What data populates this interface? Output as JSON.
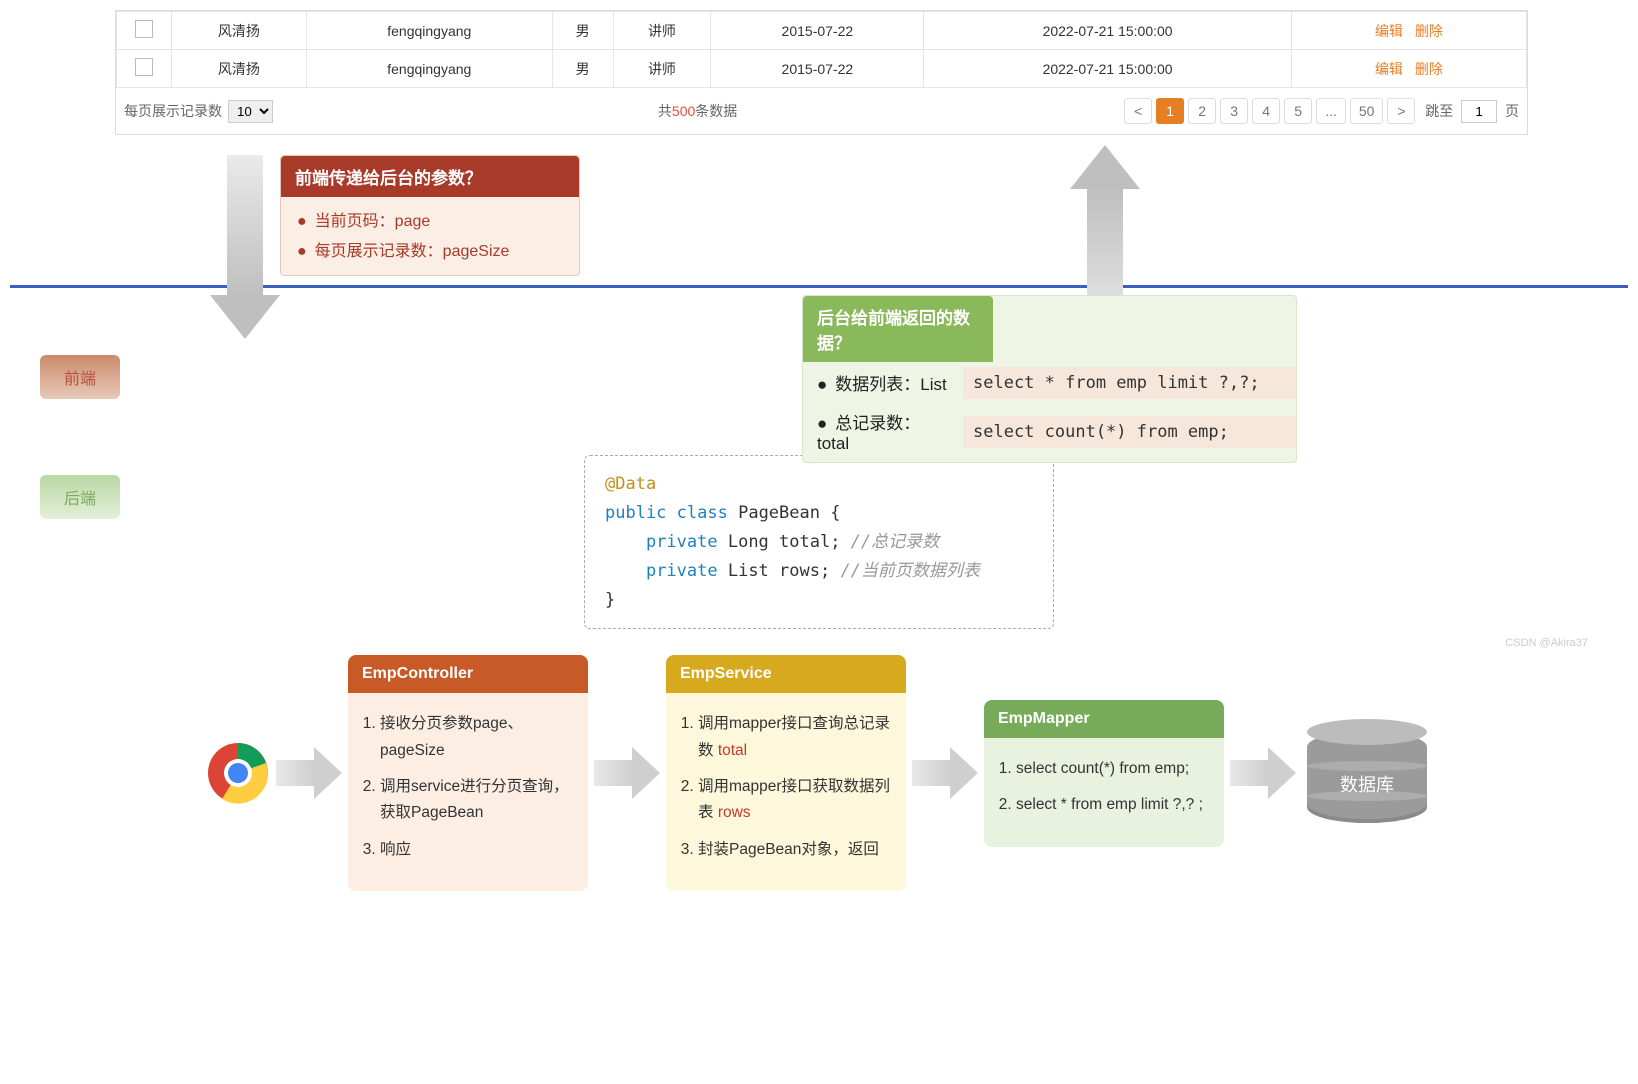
{
  "table": {
    "rows": [
      {
        "name": "风清扬",
        "py": "fengqingyang",
        "gender": "男",
        "role": "讲师",
        "date": "2015-07-22",
        "ts": "2022-07-21 15:00:00"
      },
      {
        "name": "风清扬",
        "py": "fengqingyang",
        "gender": "男",
        "role": "讲师",
        "date": "2015-07-22",
        "ts": "2022-07-21 15:00:00"
      }
    ],
    "op_edit": "编辑",
    "op_del": "删除",
    "per_page_label": "每页展示记录数",
    "per_page_value": "10",
    "total_prefix": "共",
    "total_count": "500",
    "total_suffix": "条数据",
    "pages": [
      "<",
      "1",
      "2",
      "3",
      "4",
      "5",
      "...",
      "50",
      ">"
    ],
    "current_page_index": 1,
    "jump_prefix": "跳至",
    "jump_value": "1",
    "jump_suffix": "页",
    "border_color": "#e5e5e5",
    "accent": "#e67e22"
  },
  "labels": {
    "front": "前端",
    "back": "后端"
  },
  "red_box": {
    "title": "前端传递给后台的参数？",
    "items": [
      "当前页码：page",
      "每页展示记录数：pageSize"
    ],
    "header_bg": "#a83a2a",
    "body_bg": "#fbeee4"
  },
  "green_box": {
    "title": "后台给前端返回的数据？",
    "rows": [
      {
        "label": "数据列表：List",
        "sql": "select * from emp limit ?,?;"
      },
      {
        "label": "总记录数：total",
        "sql": "select count(*) from emp;"
      }
    ],
    "header_bg": "#8ab95c",
    "body_bg": "#eef5e4",
    "sql_bg": "#f6e7da"
  },
  "code": {
    "ann": "@Data",
    "l1a": "public",
    "l1b": "class",
    "l1c": " PageBean {",
    "l2a": "private",
    "l2b": " Long total; ",
    "l2c": "//总记录数",
    "l3a": "private",
    "l3b": " List rows; ",
    "l3c": "//当前页数据列表",
    "l4": "}"
  },
  "watermark": "CSDN @Akira37",
  "cards": {
    "ctrl": {
      "title": "EmpController",
      "items": [
        "接收分页参数page、pageSize",
        "调用service进行分页查询，获取PageBean",
        "响应"
      ],
      "title_bg": "#c85a28",
      "body_bg": "#fceee3"
    },
    "svc": {
      "title": "EmpService",
      "item1_a": "调用mapper接口查询总记录数 ",
      "item1_b": "total",
      "item2_a": "调用mapper接口获取数据列表 ",
      "item2_b": "rows",
      "item3": "封装PageBean对象，返回",
      "title_bg": "#d7a91e",
      "body_bg": "#fdf7dc"
    },
    "map": {
      "title": "EmpMapper",
      "items": [
        "select count(*) from emp;",
        "select * from emp limit ?,? ;"
      ],
      "title_bg": "#77ab59",
      "body_bg": "#e9f2df"
    }
  },
  "db_label": "数据库",
  "colors": {
    "hline": "#3b5fc0",
    "arrow": "#bfbfbf"
  }
}
